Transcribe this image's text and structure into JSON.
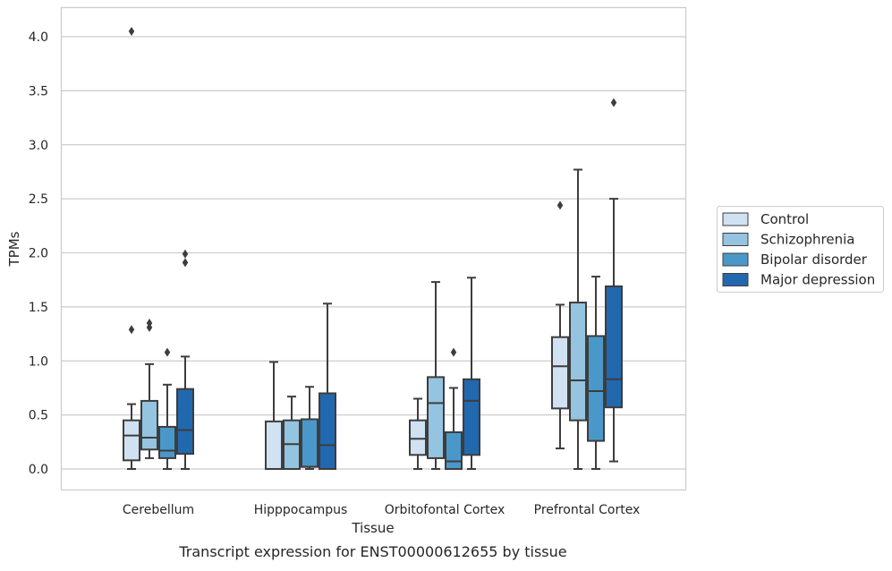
{
  "chart_data": {
    "type": "box",
    "title": "",
    "caption": "Transcript expression for ENST00000612655 by tissue",
    "xlabel": "Tissue",
    "ylabel": "TPMs",
    "ylim": [
      -0.2,
      4.27
    ],
    "yticks": [
      "0.0",
      "0.5",
      "1.0",
      "1.5",
      "2.0",
      "2.5",
      "3.0",
      "3.5",
      "4.0"
    ],
    "grid": true,
    "legend_position": "right",
    "categories": [
      "Cerebellum",
      "Hipppocampus",
      "Orbitofontal Cortex",
      "Prefrontal Cortex"
    ],
    "series": [
      {
        "name": "Control",
        "color": "#d0e1f2",
        "boxes": [
          {
            "whislo": 0.0,
            "q1": 0.08,
            "med": 0.31,
            "q3": 0.45,
            "whishi": 0.6,
            "fliers": [
              1.29,
              4.05
            ]
          },
          {
            "whislo": 0.0,
            "q1": 0.0,
            "med": 0.0,
            "q3": 0.44,
            "whishi": 0.99,
            "fliers": []
          },
          {
            "whislo": 0.0,
            "q1": 0.13,
            "med": 0.28,
            "q3": 0.45,
            "whishi": 0.65,
            "fliers": []
          },
          {
            "whislo": 0.19,
            "q1": 0.56,
            "med": 0.95,
            "q3": 1.22,
            "whishi": 1.52,
            "fliers": [
              2.44
            ]
          }
        ]
      },
      {
        "name": "Schizophrenia",
        "color": "#94c4df",
        "boxes": [
          {
            "whislo": 0.1,
            "q1": 0.18,
            "med": 0.29,
            "q3": 0.63,
            "whishi": 0.97,
            "fliers": [
              1.31,
              1.35
            ]
          },
          {
            "whislo": 0.0,
            "q1": 0.0,
            "med": 0.23,
            "q3": 0.45,
            "whishi": 0.67,
            "fliers": []
          },
          {
            "whislo": 0.0,
            "q1": 0.1,
            "med": 0.61,
            "q3": 0.85,
            "whishi": 1.73,
            "fliers": []
          },
          {
            "whislo": 0.0,
            "q1": 0.45,
            "med": 0.82,
            "q3": 1.54,
            "whishi": 2.77,
            "fliers": []
          }
        ]
      },
      {
        "name": "Bipolar disorder",
        "color": "#4a98c9",
        "boxes": [
          {
            "whislo": 0.0,
            "q1": 0.1,
            "med": 0.17,
            "q3": 0.39,
            "whishi": 0.78,
            "fliers": [
              1.08
            ]
          },
          {
            "whislo": 0.0,
            "q1": 0.02,
            "med": 0.02,
            "q3": 0.46,
            "whishi": 0.76,
            "fliers": []
          },
          {
            "whislo": 0.0,
            "q1": 0.0,
            "med": 0.07,
            "q3": 0.34,
            "whishi": 0.75,
            "fliers": [
              1.08
            ]
          },
          {
            "whislo": 0.0,
            "q1": 0.26,
            "med": 0.72,
            "q3": 1.23,
            "whishi": 1.78,
            "fliers": []
          }
        ]
      },
      {
        "name": "Major depression",
        "color": "#2268ae",
        "boxes": [
          {
            "whislo": 0.0,
            "q1": 0.14,
            "med": 0.36,
            "q3": 0.74,
            "whishi": 1.04,
            "fliers": [
              1.91,
              1.99
            ]
          },
          {
            "whislo": 0.0,
            "q1": 0.0,
            "med": 0.22,
            "q3": 0.7,
            "whishi": 1.53,
            "fliers": []
          },
          {
            "whislo": 0.0,
            "q1": 0.13,
            "med": 0.63,
            "q3": 0.83,
            "whishi": 1.77,
            "fliers": []
          },
          {
            "whislo": 0.07,
            "q1": 0.57,
            "med": 0.83,
            "q3": 1.69,
            "whishi": 2.5,
            "fliers": [
              3.39
            ]
          }
        ]
      }
    ]
  }
}
